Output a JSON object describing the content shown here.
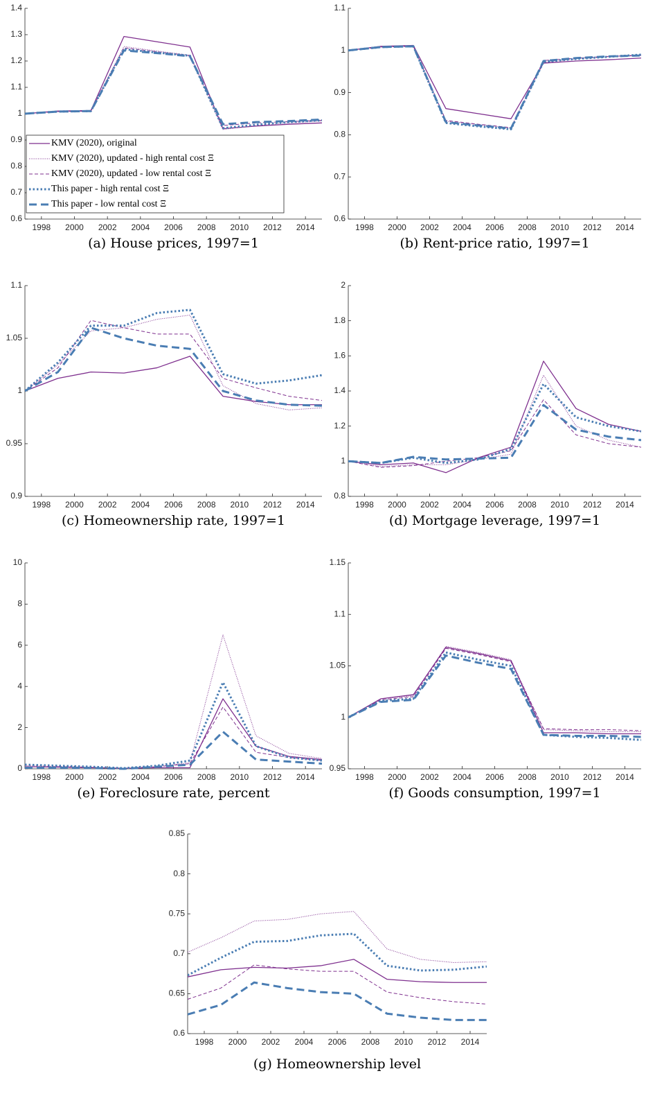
{
  "chart_data": [
    {
      "type": "line",
      "caption": "(a) House prices, 1997=1",
      "x": [
        1997,
        1999,
        2001,
        2003,
        2005,
        2007,
        2009,
        2011,
        2013,
        2015
      ],
      "xlim": [
        1997,
        2015
      ],
      "xticks": [
        1998,
        2000,
        2002,
        2004,
        2006,
        2008,
        2010,
        2012,
        2014
      ],
      "ylim": [
        0.6,
        1.4
      ],
      "yticks": [
        0.6,
        0.7,
        0.8,
        0.9,
        1,
        1.1,
        1.2,
        1.3,
        1.4
      ],
      "legend": "lower left",
      "series": [
        {
          "name": "KMV (2020), original",
          "color": "#7e2f8e",
          "style": "solid",
          "values": [
            1.0,
            1.01,
            1.012,
            1.293,
            1.273,
            1.253,
            0.943,
            0.953,
            0.96,
            0.965
          ]
        },
        {
          "name": "KMV (2020), updated - high rental cost Ξ",
          "color": "#7e2f8e",
          "style": "dotted",
          "values": [
            1.0,
            1.008,
            1.01,
            1.255,
            1.238,
            1.222,
            0.94,
            0.955,
            0.965,
            0.972
          ]
        },
        {
          "name": "KMV (2020), updated - low rental cost Ξ",
          "color": "#7e2f8e",
          "style": "dashed",
          "values": [
            1.0,
            1.008,
            1.01,
            1.25,
            1.235,
            1.22,
            0.955,
            0.965,
            0.97,
            0.975
          ]
        },
        {
          "name": "This paper - high rental cost Ξ",
          "color": "#4a7db3",
          "style": "thick-dotted",
          "values": [
            1.0,
            1.008,
            1.01,
            1.245,
            1.232,
            1.22,
            0.945,
            0.958,
            0.968,
            0.975
          ]
        },
        {
          "name": "This paper - low rental cost Ξ",
          "color": "#4a7db3",
          "style": "thick-dashed",
          "values": [
            1.0,
            1.008,
            1.01,
            1.24,
            1.23,
            1.218,
            0.96,
            0.968,
            0.972,
            0.978
          ]
        }
      ]
    },
    {
      "type": "line",
      "caption": "(b) Rent-price ratio, 1997=1",
      "x": [
        1997,
        1999,
        2001,
        2003,
        2005,
        2007,
        2009,
        2011,
        2013,
        2015
      ],
      "xlim": [
        1997,
        2015
      ],
      "xticks": [
        1998,
        2000,
        2002,
        2004,
        2006,
        2008,
        2010,
        2012,
        2014
      ],
      "ylim": [
        0.6,
        1.1
      ],
      "yticks": [
        0.6,
        0.7,
        0.8,
        0.9,
        1,
        1.1
      ],
      "series": [
        {
          "color": "#7e2f8e",
          "style": "solid",
          "values": [
            1.0,
            1.01,
            1.012,
            0.862,
            0.85,
            0.838,
            0.97,
            0.975,
            0.978,
            0.982
          ]
        },
        {
          "color": "#7e2f8e",
          "style": "dotted",
          "values": [
            1.0,
            1.008,
            1.01,
            0.832,
            0.824,
            0.816,
            0.972,
            0.98,
            0.985,
            0.99
          ]
        },
        {
          "color": "#7e2f8e",
          "style": "dashed",
          "values": [
            1.0,
            1.008,
            1.01,
            0.834,
            0.825,
            0.817,
            0.976,
            0.982,
            0.986,
            0.988
          ]
        },
        {
          "color": "#4a7db3",
          "style": "thick-dotted",
          "values": [
            1.0,
            1.008,
            1.01,
            0.828,
            0.82,
            0.813,
            0.973,
            0.98,
            0.985,
            0.99
          ]
        },
        {
          "color": "#4a7db3",
          "style": "thick-dashed",
          "values": [
            1.0,
            1.008,
            1.01,
            0.83,
            0.822,
            0.815,
            0.975,
            0.982,
            0.986,
            0.988
          ]
        }
      ]
    },
    {
      "type": "line",
      "caption": "(c) Homeownership rate, 1997=1",
      "x": [
        1997,
        1999,
        2001,
        2003,
        2005,
        2007,
        2009,
        2011,
        2013,
        2015
      ],
      "xlim": [
        1997,
        2015
      ],
      "xticks": [
        1998,
        2000,
        2002,
        2004,
        2006,
        2008,
        2010,
        2012,
        2014
      ],
      "ylim": [
        0.9,
        1.1
      ],
      "yticks": [
        0.9,
        0.95,
        1,
        1.05,
        1.1
      ],
      "series": [
        {
          "color": "#7e2f8e",
          "style": "solid",
          "values": [
            1.0,
            1.012,
            1.018,
            1.017,
            1.022,
            1.033,
            0.995,
            0.99,
            0.987,
            0.987
          ]
        },
        {
          "color": "#7e2f8e",
          "style": "dotted",
          "values": [
            1.0,
            1.025,
            1.057,
            1.06,
            1.068,
            1.072,
            1.005,
            0.988,
            0.982,
            0.984
          ]
        },
        {
          "color": "#7e2f8e",
          "style": "dashed",
          "values": [
            1.0,
            1.022,
            1.067,
            1.06,
            1.054,
            1.054,
            1.012,
            1.003,
            0.995,
            0.991
          ]
        },
        {
          "color": "#4a7db3",
          "style": "thick-dotted",
          "values": [
            1.0,
            1.027,
            1.062,
            1.062,
            1.074,
            1.077,
            1.016,
            1.007,
            1.01,
            1.015
          ]
        },
        {
          "color": "#4a7db3",
          "style": "thick-dashed",
          "values": [
            1.0,
            1.018,
            1.06,
            1.05,
            1.043,
            1.04,
            1.0,
            0.991,
            0.987,
            0.986
          ]
        }
      ]
    },
    {
      "type": "line",
      "caption": "(d) Mortgage leverage, 1997=1",
      "x": [
        1997,
        1999,
        2001,
        2003,
        2005,
        2007,
        2009,
        2011,
        2013,
        2015
      ],
      "xlim": [
        1997,
        2015
      ],
      "xticks": [
        1998,
        2000,
        2002,
        2004,
        2006,
        2008,
        2010,
        2012,
        2014
      ],
      "ylim": [
        0.8,
        2
      ],
      "yticks": [
        0.8,
        1,
        1.2,
        1.4,
        1.6,
        1.8,
        2
      ],
      "series": [
        {
          "color": "#7e2f8e",
          "style": "solid",
          "values": [
            1.0,
            0.98,
            0.99,
            0.935,
            1.02,
            1.08,
            1.57,
            1.3,
            1.21,
            1.17
          ]
        },
        {
          "color": "#7e2f8e",
          "style": "dotted",
          "values": [
            1.0,
            0.97,
            0.98,
            0.98,
            1.01,
            1.04,
            1.49,
            1.2,
            1.12,
            1.08
          ]
        },
        {
          "color": "#7e2f8e",
          "style": "dashed",
          "values": [
            1.0,
            0.965,
            0.975,
            1.0,
            1.02,
            1.06,
            1.35,
            1.15,
            1.1,
            1.08
          ]
        },
        {
          "color": "#4a7db3",
          "style": "thick-dotted",
          "values": [
            1.0,
            0.99,
            1.02,
            0.99,
            1.01,
            1.07,
            1.44,
            1.25,
            1.2,
            1.17
          ]
        },
        {
          "color": "#4a7db3",
          "style": "thick-dashed",
          "values": [
            1.0,
            0.99,
            1.025,
            1.01,
            1.015,
            1.02,
            1.32,
            1.18,
            1.14,
            1.12
          ]
        }
      ]
    },
    {
      "type": "line",
      "caption": "(e) Foreclosure rate, percent",
      "x": [
        1997,
        1999,
        2001,
        2003,
        2005,
        2007,
        2009,
        2011,
        2013,
        2015
      ],
      "xlim": [
        1997,
        2015
      ],
      "xticks": [
        1998,
        2000,
        2002,
        2004,
        2006,
        2008,
        2010,
        2012,
        2014
      ],
      "ylim": [
        0,
        10
      ],
      "yticks": [
        0,
        2,
        4,
        6,
        8,
        10
      ],
      "series": [
        {
          "color": "#7e2f8e",
          "style": "solid",
          "values": [
            0.1,
            0.08,
            0.05,
            0.02,
            0.05,
            0.05,
            3.4,
            1.1,
            0.6,
            0.45
          ]
        },
        {
          "color": "#7e2f8e",
          "style": "dotted",
          "values": [
            0.15,
            0.12,
            0.08,
            0.03,
            0.1,
            0.3,
            6.5,
            1.6,
            0.75,
            0.5
          ]
        },
        {
          "color": "#7e2f8e",
          "style": "dashed",
          "values": [
            0.1,
            0.1,
            0.07,
            0.02,
            0.1,
            0.25,
            3.0,
            0.8,
            0.55,
            0.4
          ]
        },
        {
          "color": "#4a7db3",
          "style": "thick-dotted",
          "values": [
            0.2,
            0.15,
            0.1,
            0.03,
            0.15,
            0.4,
            4.2,
            1.1,
            0.55,
            0.4
          ]
        },
        {
          "color": "#4a7db3",
          "style": "thick-dashed",
          "values": [
            0.05,
            0.05,
            0.04,
            0.0,
            0.1,
            0.2,
            1.8,
            0.45,
            0.35,
            0.25
          ]
        }
      ]
    },
    {
      "type": "line",
      "caption": "(f) Goods consumption, 1997=1",
      "x": [
        1997,
        1999,
        2001,
        2003,
        2005,
        2007,
        2009,
        2011,
        2013,
        2015
      ],
      "xlim": [
        1997,
        2015
      ],
      "xticks": [
        1998,
        2000,
        2002,
        2004,
        2006,
        2008,
        2010,
        2012,
        2014
      ],
      "ylim": [
        0.95,
        1.15
      ],
      "yticks": [
        0.95,
        1,
        1.05,
        1.1,
        1.15
      ],
      "series": [
        {
          "color": "#7e2f8e",
          "style": "solid",
          "values": [
            1.0,
            1.018,
            1.022,
            1.068,
            1.062,
            1.055,
            0.985,
            0.985,
            0.984,
            0.984
          ]
        },
        {
          "color": "#7e2f8e",
          "style": "dotted",
          "values": [
            1.0,
            1.018,
            1.021,
            1.069,
            1.063,
            1.056,
            0.988,
            0.987,
            0.986,
            0.986
          ]
        },
        {
          "color": "#7e2f8e",
          "style": "dashed",
          "values": [
            1.0,
            1.017,
            1.02,
            1.067,
            1.061,
            1.054,
            0.989,
            0.988,
            0.988,
            0.987
          ]
        },
        {
          "color": "#4a7db3",
          "style": "thick-dotted",
          "values": [
            1.0,
            1.016,
            1.018,
            1.063,
            1.056,
            1.05,
            0.983,
            0.981,
            0.98,
            0.978
          ]
        },
        {
          "color": "#4a7db3",
          "style": "thick-dashed",
          "values": [
            1.0,
            1.015,
            1.017,
            1.06,
            1.053,
            1.047,
            0.983,
            0.982,
            0.982,
            0.981
          ]
        }
      ]
    },
    {
      "type": "line",
      "caption": "(g) Homeownership level",
      "x": [
        1997,
        1999,
        2001,
        2003,
        2005,
        2007,
        2009,
        2011,
        2013,
        2015
      ],
      "xlim": [
        1997,
        2015
      ],
      "xticks": [
        1998,
        2000,
        2002,
        2004,
        2006,
        2008,
        2010,
        2012,
        2014
      ],
      "ylim": [
        0.6,
        0.85
      ],
      "yticks": [
        0.6,
        0.65,
        0.7,
        0.75,
        0.8,
        0.85
      ],
      "series": [
        {
          "color": "#7e2f8e",
          "style": "solid",
          "values": [
            0.671,
            0.68,
            0.683,
            0.682,
            0.685,
            0.693,
            0.668,
            0.665,
            0.664,
            0.664
          ]
        },
        {
          "color": "#7e2f8e",
          "style": "dotted",
          "values": [
            0.702,
            0.72,
            0.741,
            0.743,
            0.75,
            0.753,
            0.706,
            0.693,
            0.689,
            0.69
          ]
        },
        {
          "color": "#7e2f8e",
          "style": "dashed",
          "values": [
            0.643,
            0.657,
            0.686,
            0.681,
            0.678,
            0.678,
            0.652,
            0.645,
            0.64,
            0.637
          ]
        },
        {
          "color": "#4a7db3",
          "style": "thick-dotted",
          "values": [
            0.673,
            0.695,
            0.715,
            0.716,
            0.723,
            0.725,
            0.685,
            0.679,
            0.68,
            0.684
          ]
        },
        {
          "color": "#4a7db3",
          "style": "thick-dashed",
          "values": [
            0.624,
            0.636,
            0.664,
            0.657,
            0.652,
            0.65,
            0.625,
            0.62,
            0.617,
            0.617
          ]
        }
      ]
    }
  ]
}
